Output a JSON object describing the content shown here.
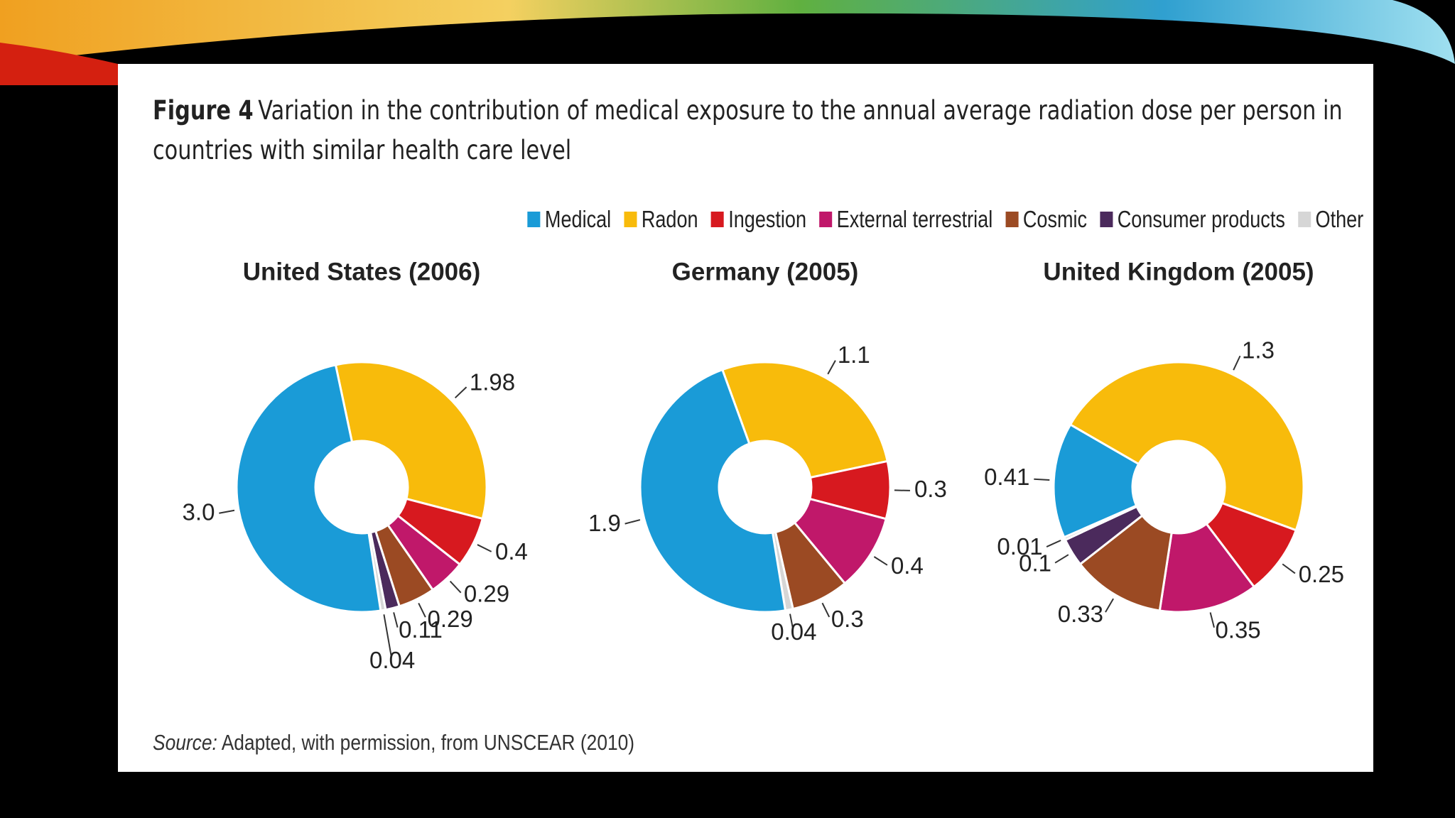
{
  "figure": {
    "label": "Figure 4",
    "caption": "Variation in the contribution of medical exposure to the annual average radiation dose per person in countries with similar health care level",
    "source_label": "Source:",
    "source": "Adapted, with permission, from UNSCEAR (2010)"
  },
  "legend": {
    "labels": [
      "Medical",
      "Radon",
      "Ingestion",
      "External terrestrial",
      "Cosmic",
      "Consumer products",
      "Other"
    ],
    "colors": [
      "#1a9bd7",
      "#f8bb0b",
      "#d7191f",
      "#c0186a",
      "#9b4a23",
      "#4b2a5c",
      "#d6d6d6"
    ]
  },
  "chart_data": [
    {
      "type": "donut",
      "title": "United States (2006)",
      "values": [
        3.0,
        1.98,
        0.4,
        0.29,
        0.29,
        0.11,
        0.04
      ],
      "value_labels": [
        "3.0",
        "1.98",
        "0.4",
        "0.29",
        "0.29",
        "0.11",
        "0.04"
      ]
    },
    {
      "type": "donut",
      "title": "Germany (2005)",
      "values": [
        1.9,
        1.1,
        0.3,
        0.4,
        0.3,
        null,
        0.04
      ],
      "value_labels": [
        "1.9",
        "1.1",
        "0.3",
        "0.4",
        "0.3",
        null,
        "0.04"
      ]
    },
    {
      "type": "donut",
      "title": "United Kingdom (2005)",
      "values": [
        0.41,
        1.3,
        0.25,
        0.35,
        0.33,
        0.1,
        0.01
      ],
      "value_labels": [
        "0.41",
        "1.3",
        "0.25",
        "0.35",
        "0.33",
        "0.1",
        "0.01"
      ]
    }
  ]
}
